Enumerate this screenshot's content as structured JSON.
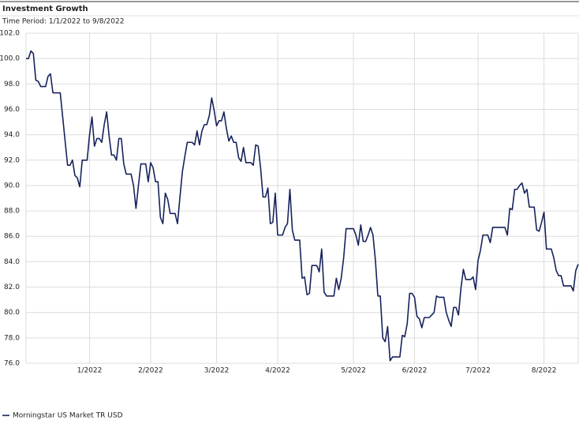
{
  "chart_data": {
    "type": "line",
    "title": "Investment Growth",
    "subtitle": "Time Period: 1/1/2022 to 9/8/2022",
    "categories": [
      null,
      null,
      null,
      null,
      null,
      null,
      null,
      null,
      null,
      null,
      null,
      null,
      null,
      null,
      null,
      null,
      null,
      null,
      null,
      null,
      null,
      null,
      null,
      null,
      null,
      null,
      "1/2022",
      null,
      null,
      null,
      null,
      null,
      null,
      null,
      null,
      null,
      null,
      null,
      null,
      null,
      null,
      null,
      null,
      null,
      null,
      null,
      null,
      null,
      null,
      null,
      null,
      "2/2022",
      null,
      null,
      null,
      null,
      null,
      null,
      null,
      null,
      null,
      null,
      null,
      null,
      null,
      null,
      null,
      null,
      null,
      null,
      null,
      null,
      null,
      null,
      null,
      null,
      null,
      null,
      "3/2022",
      null,
      null,
      null,
      null,
      null,
      null,
      null,
      null,
      null,
      null,
      null,
      null,
      null,
      null,
      null,
      null,
      null,
      null,
      null,
      null,
      null,
      null,
      null,
      null,
      "4/2022",
      null,
      null,
      null,
      null,
      null,
      null,
      null,
      null,
      null,
      null,
      null,
      null,
      null,
      null,
      null,
      null,
      null,
      null,
      null,
      null,
      null,
      null,
      null,
      null,
      null,
      null,
      null,
      null,
      null,
      null,
      "5/2022",
      null,
      null,
      null,
      null,
      null,
      null,
      null,
      null,
      null,
      null,
      null,
      null,
      null,
      null,
      null,
      null,
      null,
      null,
      null,
      null,
      null,
      null,
      null,
      null,
      "6/2022",
      null,
      null,
      null,
      null,
      null,
      null,
      null,
      null,
      null,
      null,
      null,
      null,
      null,
      null,
      null,
      null,
      null,
      null,
      null,
      null,
      null,
      null,
      null,
      null,
      null,
      "7/2022",
      null,
      null,
      null,
      null,
      null,
      null,
      null,
      null,
      null,
      null,
      null,
      null,
      null,
      null,
      null,
      null,
      null,
      null,
      null,
      null,
      null,
      null,
      null,
      null,
      null,
      null,
      "8/2022",
      null,
      null,
      null,
      null,
      null,
      null,
      null,
      null,
      null,
      null,
      null,
      null,
      null,
      null
    ],
    "series": [
      {
        "name": "Morningstar US Market TR USD",
        "color": "#16235c",
        "values": [
          100.0,
          100.0,
          100.6,
          100.4,
          98.3,
          98.2,
          97.8,
          97.8,
          97.8,
          98.6,
          98.8,
          97.3,
          97.3,
          97.3,
          97.3,
          95.4,
          93.5,
          91.6,
          91.6,
          92.0,
          90.8,
          90.6,
          89.9,
          92.0,
          92.0,
          92.0,
          94.0,
          95.4,
          93.1,
          93.7,
          93.7,
          93.4,
          94.8,
          95.8,
          93.9,
          92.4,
          92.4,
          92.0,
          93.7,
          93.7,
          91.7,
          90.9,
          90.9,
          90.9,
          90.0,
          88.2,
          90.0,
          91.7,
          91.7,
          91.7,
          90.3,
          91.8,
          91.4,
          90.3,
          90.3,
          87.5,
          87.0,
          89.4,
          88.9,
          87.8,
          87.8,
          87.8,
          87.0,
          89.1,
          91.1,
          92.3,
          93.4,
          93.4,
          93.4,
          93.2,
          94.3,
          93.2,
          94.3,
          94.8,
          94.8,
          95.5,
          96.9,
          95.9,
          94.7,
          95.1,
          95.1,
          95.8,
          94.5,
          93.5,
          93.9,
          93.4,
          93.4,
          92.2,
          91.9,
          93.0,
          91.8,
          91.8,
          91.8,
          91.6,
          93.2,
          93.1,
          91.4,
          89.1,
          89.1,
          89.8,
          87.0,
          87.1,
          89.4,
          86.1,
          86.1,
          86.1,
          86.7,
          87.0,
          89.7,
          86.5,
          85.7,
          85.7,
          85.7,
          82.7,
          82.8,
          81.4,
          81.5,
          83.7,
          83.7,
          83.7,
          83.2,
          85.0,
          81.6,
          81.3,
          81.3,
          81.3,
          81.3,
          82.7,
          81.8,
          82.7,
          84.3,
          86.6,
          86.6,
          86.6,
          86.6,
          86.1,
          85.3,
          86.9,
          85.6,
          85.6,
          86.1,
          86.7,
          86.1,
          84.1,
          81.3,
          81.3,
          78.0,
          77.7,
          78.9,
          76.2,
          76.5,
          76.5,
          76.5,
          76.5,
          78.2,
          78.1,
          79.1,
          81.5,
          81.5,
          81.2,
          79.7,
          79.5,
          78.8,
          79.6,
          79.6,
          79.6,
          79.8,
          80.0,
          81.3,
          81.2,
          81.2,
          81.2,
          80.0,
          79.4,
          78.9,
          80.4,
          80.4,
          79.8,
          81.9,
          83.4,
          82.6,
          82.6,
          82.6,
          82.8,
          81.8,
          84.1,
          84.9,
          86.1,
          86.1,
          86.1,
          85.5,
          86.7,
          86.7,
          86.7,
          86.7,
          86.7,
          86.7,
          86.1,
          88.2,
          88.1,
          89.7,
          89.7,
          90.0,
          90.2,
          89.4,
          89.7,
          88.3,
          88.3,
          88.3,
          86.5,
          86.4,
          87.1,
          87.9,
          85.0,
          85.0,
          85.0,
          84.3,
          83.3,
          82.9,
          82.9,
          82.1,
          82.1,
          82.1,
          82.1,
          81.7,
          83.3,
          83.8
        ]
      }
    ],
    "ylim": [
      76,
      102
    ],
    "yticks": [
      {
        "value": 76,
        "label": "76.0"
      },
      {
        "value": 78,
        "label": "78.0"
      },
      {
        "value": 80,
        "label": "80.0"
      },
      {
        "value": 82,
        "label": "82.0"
      },
      {
        "value": 84,
        "label": "84.0"
      },
      {
        "value": 86,
        "label": "86.0"
      },
      {
        "value": 88,
        "label": "88.0"
      },
      {
        "value": 90,
        "label": "90.0"
      },
      {
        "value": 92,
        "label": "92.0"
      },
      {
        "value": 94,
        "label": "94.0"
      },
      {
        "value": 96,
        "label": "96.0"
      },
      {
        "value": 98,
        "label": "98.0"
      },
      {
        "value": 100,
        "label": "100.0"
      },
      {
        "value": 102,
        "label": "102.0"
      }
    ],
    "grid": true,
    "legend": "bottom-left"
  }
}
